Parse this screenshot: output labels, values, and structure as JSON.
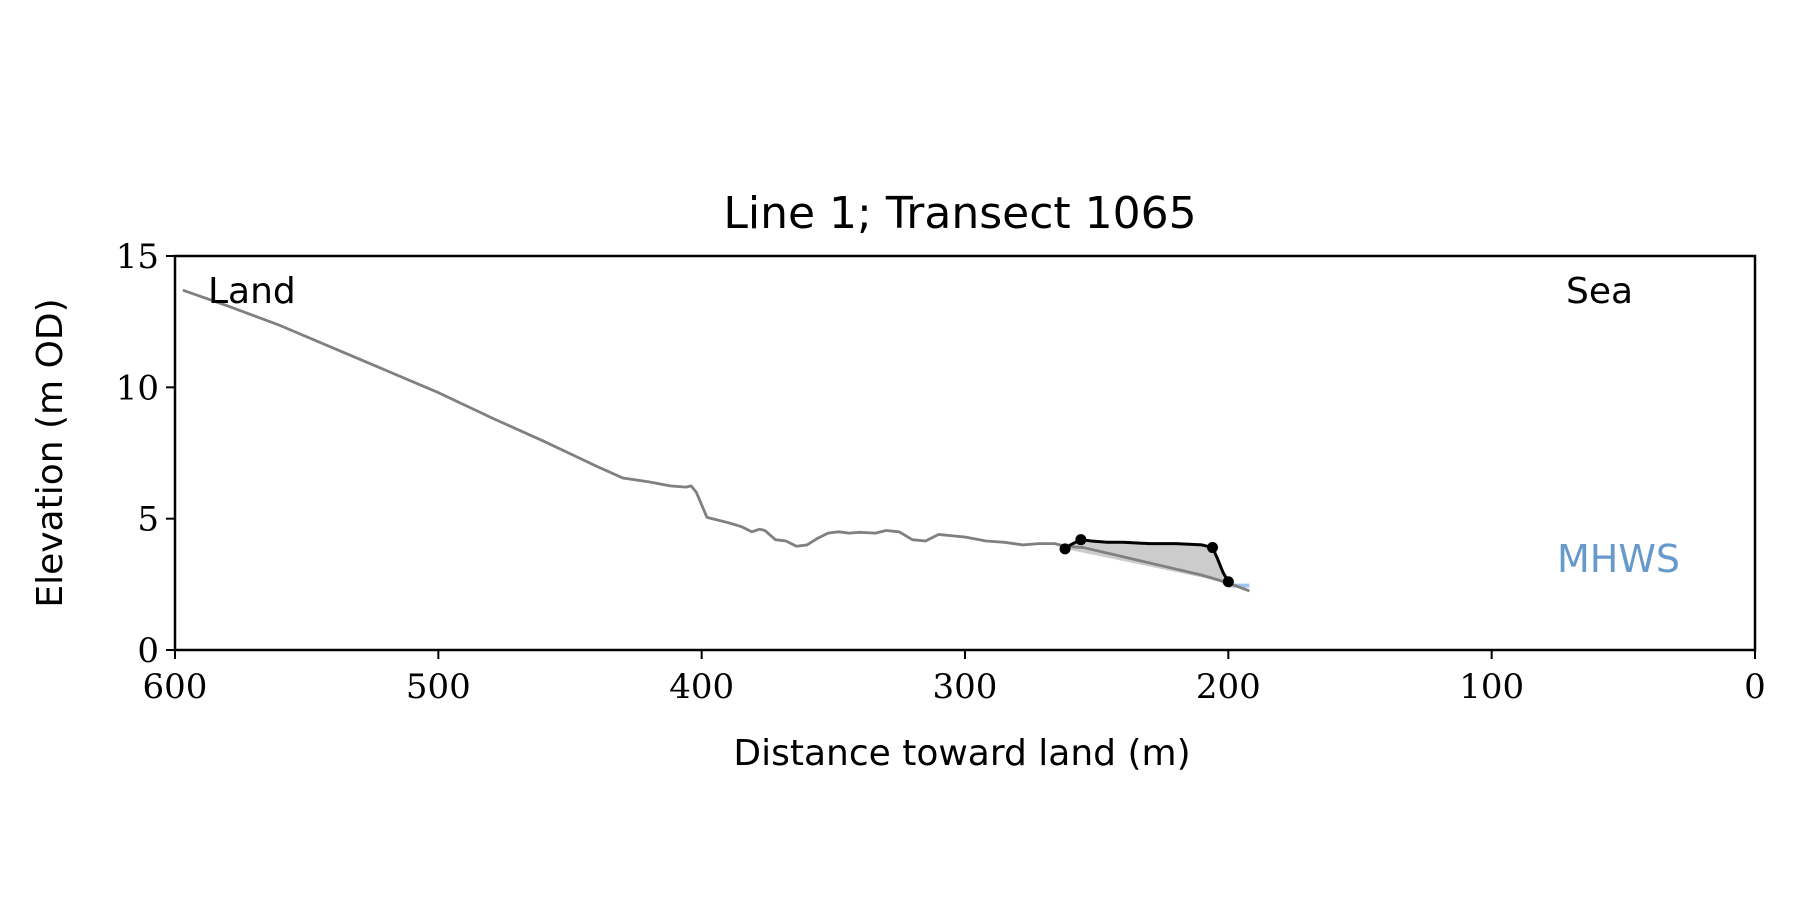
{
  "chart_data": {
    "type": "line",
    "title": "Line 1; Transect 1065",
    "xlabel": "Distance toward land (m)",
    "ylabel": "Elevation (m OD)",
    "xlim": [
      600,
      0
    ],
    "ylim": [
      0,
      15
    ],
    "x_ticks": [
      600,
      500,
      400,
      300,
      200,
      100,
      0
    ],
    "y_ticks": [
      0,
      5,
      10,
      15
    ],
    "grid": false,
    "annotations": {
      "land": "Land",
      "sea": "Sea"
    },
    "mhws": {
      "label": "MHWS",
      "value": 2.45,
      "x_range": [
        200,
        192
      ]
    },
    "colors": {
      "profile": "#808080",
      "cliff": "#000000",
      "fill": "#cccccc",
      "mhws": "#6699cc",
      "mhws_line": "#a0c4ee"
    },
    "series": [
      {
        "role": "profile",
        "points": [
          [
            597,
            13.7
          ],
          [
            580,
            13.1
          ],
          [
            560,
            12.35
          ],
          [
            540,
            11.5
          ],
          [
            520,
            10.65
          ],
          [
            500,
            9.8
          ],
          [
            480,
            8.85
          ],
          [
            460,
            7.95
          ],
          [
            440,
            7.0
          ],
          [
            430,
            6.55
          ],
          [
            420,
            6.4
          ],
          [
            412,
            6.25
          ],
          [
            406,
            6.2
          ],
          [
            404,
            6.25
          ],
          [
            402,
            6.0
          ],
          [
            398,
            5.05
          ],
          [
            390,
            4.85
          ],
          [
            385,
            4.7
          ],
          [
            381,
            4.5
          ],
          [
            378,
            4.6
          ],
          [
            376,
            4.55
          ],
          [
            372,
            4.2
          ],
          [
            368,
            4.15
          ],
          [
            364,
            3.95
          ],
          [
            360,
            4.0
          ],
          [
            356,
            4.25
          ],
          [
            352,
            4.45
          ],
          [
            348,
            4.5
          ],
          [
            344,
            4.45
          ],
          [
            340,
            4.48
          ],
          [
            334,
            4.45
          ],
          [
            330,
            4.55
          ],
          [
            325,
            4.5
          ],
          [
            320,
            4.2
          ],
          [
            315,
            4.15
          ],
          [
            310,
            4.4
          ],
          [
            305,
            4.35
          ],
          [
            300,
            4.3
          ],
          [
            292,
            4.15
          ],
          [
            285,
            4.1
          ],
          [
            278,
            4.0
          ],
          [
            272,
            4.05
          ],
          [
            266,
            4.05
          ],
          [
            262,
            3.95
          ],
          [
            255,
            3.9
          ],
          [
            240,
            3.55
          ],
          [
            225,
            3.2
          ],
          [
            210,
            2.85
          ],
          [
            200,
            2.55
          ],
          [
            192,
            2.25
          ]
        ]
      },
      {
        "role": "cliff-top",
        "points": [
          [
            262,
            3.85
          ],
          [
            260,
            4.0
          ],
          [
            256,
            4.2
          ],
          [
            252,
            4.15
          ],
          [
            246,
            4.1
          ],
          [
            240,
            4.1
          ],
          [
            230,
            4.05
          ],
          [
            220,
            4.05
          ],
          [
            210,
            4.0
          ],
          [
            206,
            3.9
          ],
          [
            204,
            3.45
          ],
          [
            202,
            2.95
          ],
          [
            200,
            2.6
          ]
        ]
      },
      {
        "role": "toe",
        "points": [
          [
            262,
            3.85
          ],
          [
            200,
            2.55
          ]
        ]
      }
    ],
    "markers": [
      [
        262,
        3.85
      ],
      [
        256,
        4.2
      ],
      [
        206,
        3.9
      ],
      [
        200,
        2.6
      ]
    ]
  }
}
